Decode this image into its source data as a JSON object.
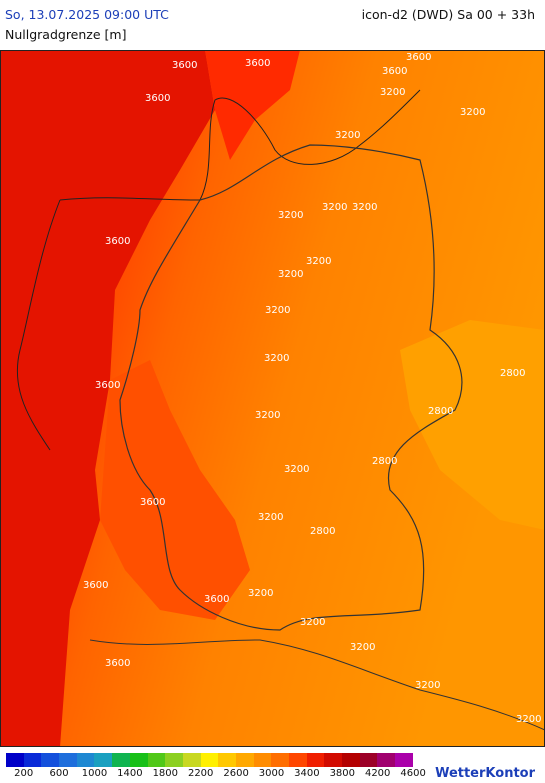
{
  "header": {
    "valid_time": "So, 13.07.2025 09:00 UTC",
    "model_run": "icon-d2 (DWD) Sa 00 + 33h",
    "parameter": "Nullgradgrenze [m]"
  },
  "map": {
    "contour_labels": [
      "3600",
      "3600",
      "3600",
      "3600",
      "3600",
      "3600",
      "3600",
      "3600",
      "3600",
      "3600",
      "3600",
      "3200",
      "3200",
      "3200",
      "3200",
      "3200",
      "3200",
      "3200",
      "3200",
      "3200",
      "3200",
      "3200",
      "3200",
      "3200",
      "3200",
      "3200",
      "3200",
      "3200",
      "3200",
      "2800",
      "2800",
      "2800",
      "2800"
    ]
  },
  "legend": {
    "colors": [
      "#0000c8",
      "#0a2ad8",
      "#1450dc",
      "#1e6edc",
      "#1e88d2",
      "#1aa0c0",
      "#10b450",
      "#18c018",
      "#50c818",
      "#8cd020",
      "#c8d820",
      "#fff000",
      "#ffc800",
      "#ffa800",
      "#ff8c00",
      "#ff6e00",
      "#ff4600",
      "#f01e00",
      "#d20a00",
      "#b40000",
      "#9c0028",
      "#a0006e",
      "#aa00aa"
    ],
    "tick_labels": [
      "200",
      "600",
      "1000",
      "1400",
      "1800",
      "2200",
      "2600",
      "3000",
      "3400",
      "3800",
      "4200",
      "4600"
    ]
  },
  "brand": "WetterKontor"
}
